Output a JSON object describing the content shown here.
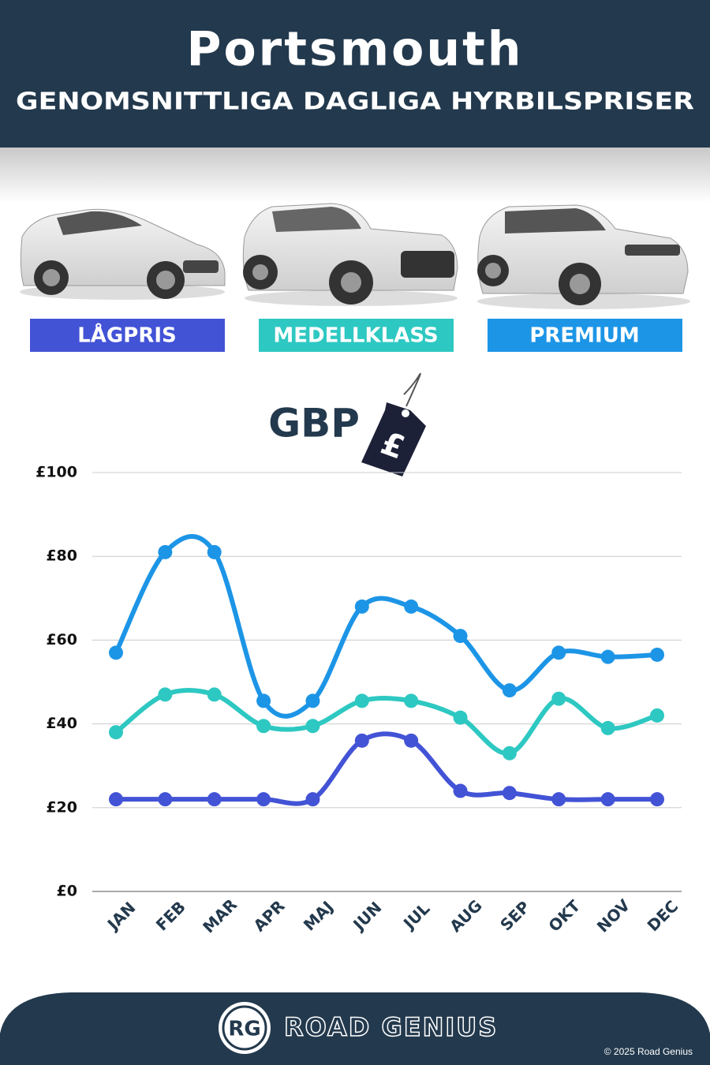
{
  "chart_data": {
    "type": "line",
    "title": "Portsmouth",
    "subtitle": "GENOMSNITTLIGA DAGLIGA HYRBILSPRISER",
    "unit_label": "GBP",
    "currency_symbol": "£",
    "categories": [
      "JAN",
      "FEB",
      "MAR",
      "APR",
      "MAJ",
      "JUN",
      "JUL",
      "AUG",
      "SEP",
      "OKT",
      "NOV",
      "DEC"
    ],
    "series": [
      {
        "name": "LÅGPRIS",
        "color": "#4353d6",
        "values": [
          22,
          22,
          22,
          22,
          22,
          36,
          36,
          24,
          23.5,
          22,
          22,
          22
        ]
      },
      {
        "name": "MEDELLKLASS",
        "color": "#2ec8c2",
        "values": [
          38,
          47,
          47,
          39.5,
          39.5,
          45.5,
          45.5,
          41.5,
          33,
          46,
          39,
          42
        ]
      },
      {
        "name": "PREMIUM",
        "color": "#1d95e6",
        "values": [
          57,
          81,
          81,
          45.5,
          45.5,
          68,
          68,
          61,
          48,
          57,
          56,
          56.5
        ]
      }
    ],
    "ylim": [
      0,
      100
    ],
    "yticks": [
      {
        "value": 0,
        "label": "£0"
      },
      {
        "value": 20,
        "label": "£20"
      },
      {
        "value": 40,
        "label": "£40"
      },
      {
        "value": 60,
        "label": "£60"
      },
      {
        "value": 80,
        "label": "£80"
      },
      {
        "value": 100,
        "label": "£100"
      }
    ],
    "grid": true,
    "footer": {
      "logo": "RG",
      "brand": "ROAD GENIUS",
      "copyright": "© 2025 Road Genius"
    }
  }
}
